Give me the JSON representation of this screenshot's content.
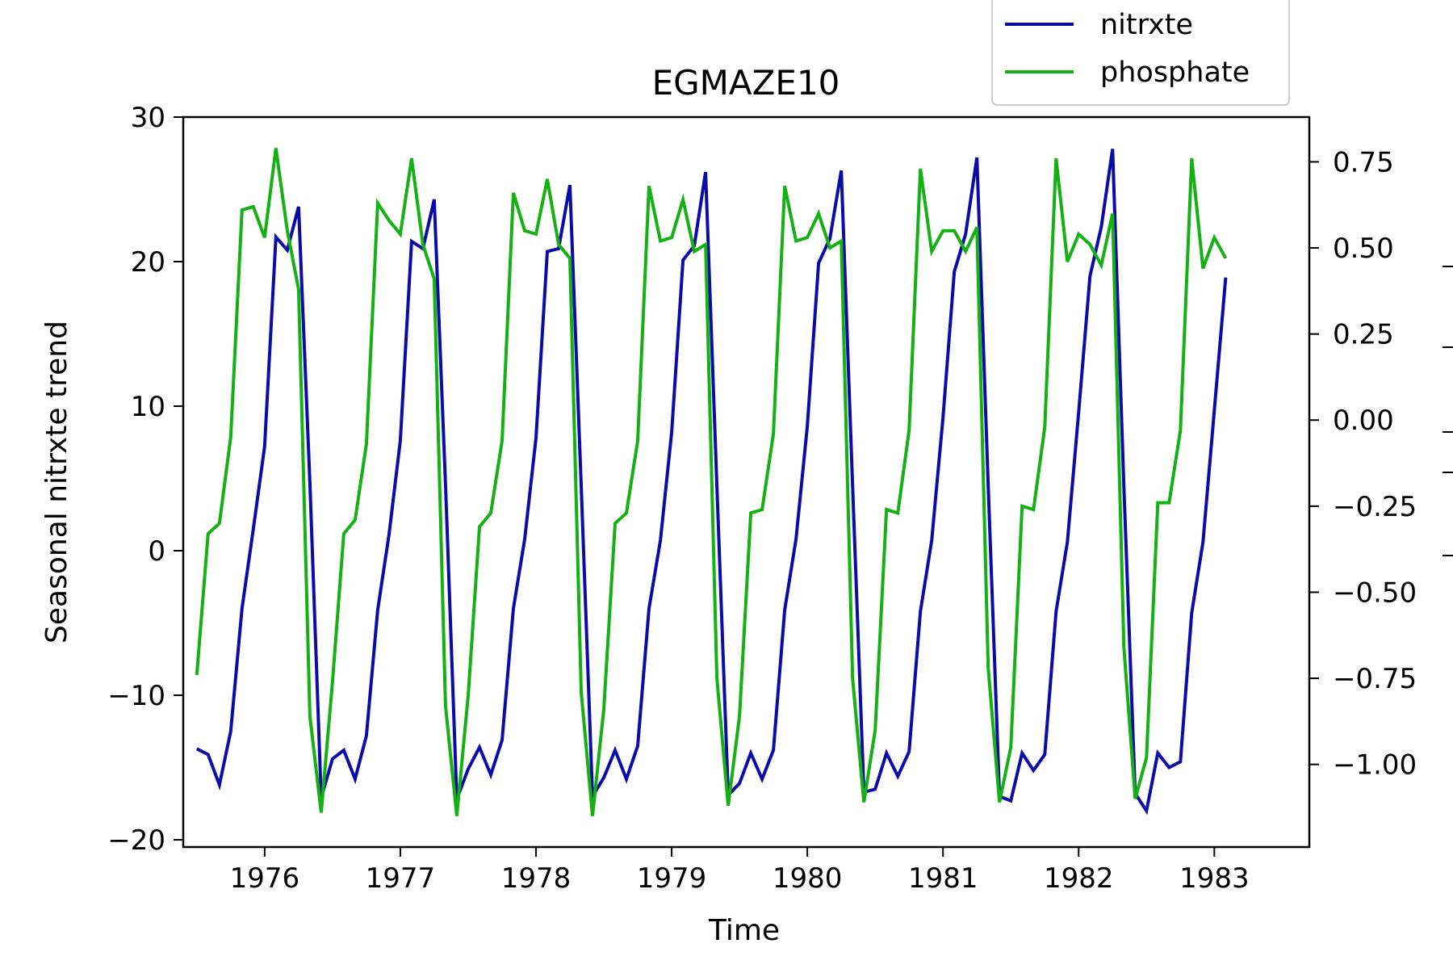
{
  "chart_data": {
    "type": "line",
    "title": "EGMAZE10",
    "xlabel": "Time",
    "ylabel_left": "Seasonal nitrxte trend",
    "ylabel_right": "",
    "x_start": "1975-07",
    "x_step": "1 month",
    "xlim": [
      1975.4,
      1983.7
    ],
    "xticks": [
      1976,
      1977,
      1978,
      1979,
      1980,
      1981,
      1982,
      1983
    ],
    "ylim_left": [
      -20.5,
      30
    ],
    "yticks_left": [
      -20,
      -10,
      0,
      10,
      20,
      30
    ],
    "ylim_right": [
      -1.24,
      0.88
    ],
    "yticks_right": [
      -1.0,
      -0.75,
      -0.5,
      -0.25,
      0.0,
      0.25,
      0.5,
      0.75
    ],
    "yticks_right_labels": [
      "−1.00",
      "−0.75",
      "−0.50",
      "−0.25",
      "0.00",
      "0.25",
      "0.50",
      "0.75"
    ],
    "yticks_left_labels": [
      "−20",
      "−10",
      "0",
      "10",
      "20",
      "30"
    ],
    "grid": false,
    "legend_position": "top-right",
    "series": [
      {
        "name": "nitrxte",
        "axis": "left",
        "color": "#0b0ba8",
        "values": [
          -13.7,
          -14.1,
          -16.2,
          -12.5,
          -4.0,
          1.5,
          7.2,
          21.7,
          20.8,
          23.8,
          4.7,
          -17.1,
          -14.4,
          -13.8,
          -15.8,
          -12.8,
          -4.1,
          1.1,
          7.6,
          21.4,
          20.9,
          24.3,
          4.6,
          -17.2,
          -15.1,
          -13.6,
          -15.5,
          -13.1,
          -4.0,
          0.8,
          7.8,
          20.7,
          20.9,
          25.3,
          4.5,
          -17.0,
          -15.7,
          -13.8,
          -15.8,
          -13.5,
          -4.0,
          0.7,
          8.2,
          20.1,
          21.1,
          26.2,
          4.5,
          -16.9,
          -16.1,
          -14.0,
          -15.8,
          -13.8,
          -4.1,
          0.8,
          8.6,
          19.9,
          21.6,
          26.3,
          4.5,
          -16.7,
          -16.5,
          -14.0,
          -15.6,
          -13.9,
          -4.2,
          0.7,
          9.2,
          19.3,
          21.9,
          27.2,
          4.5,
          -17.0,
          -17.3,
          -14.0,
          -15.2,
          -14.1,
          -4.2,
          0.6,
          9.6,
          19.0,
          22.4,
          27.8,
          4.4,
          -16.8,
          -18.0,
          -14.0,
          -15.0,
          -14.6,
          -4.3,
          0.6,
          9.7,
          18.9
        ]
      },
      {
        "name": "phosphate",
        "axis": "right",
        "color": "#14b014",
        "values": [
          -0.74,
          -0.33,
          -0.3,
          -0.05,
          0.61,
          0.62,
          0.53,
          0.79,
          0.55,
          0.38,
          -0.86,
          -1.14,
          -0.76,
          -0.33,
          -0.29,
          -0.07,
          0.63,
          0.58,
          0.54,
          0.76,
          0.51,
          0.41,
          -0.83,
          -1.15,
          -0.8,
          -0.31,
          -0.27,
          -0.06,
          0.66,
          0.55,
          0.54,
          0.7,
          0.51,
          0.47,
          -0.79,
          -1.15,
          -0.84,
          -0.3,
          -0.27,
          -0.06,
          0.68,
          0.52,
          0.53,
          0.64,
          0.49,
          0.51,
          -0.75,
          -1.12,
          -0.86,
          -0.27,
          -0.26,
          -0.04,
          0.68,
          0.52,
          0.53,
          0.6,
          0.5,
          0.52,
          -0.75,
          -1.11,
          -0.9,
          -0.26,
          -0.27,
          -0.03,
          0.73,
          0.49,
          0.55,
          0.55,
          0.49,
          0.56,
          -0.72,
          -1.11,
          -0.95,
          -0.25,
          -0.26,
          -0.02,
          0.76,
          0.46,
          0.54,
          0.51,
          0.45,
          0.6,
          -0.66,
          -1.1,
          -0.98,
          -0.24,
          -0.24,
          -0.03,
          0.76,
          0.44,
          0.53,
          0.47
        ]
      }
    ]
  }
}
